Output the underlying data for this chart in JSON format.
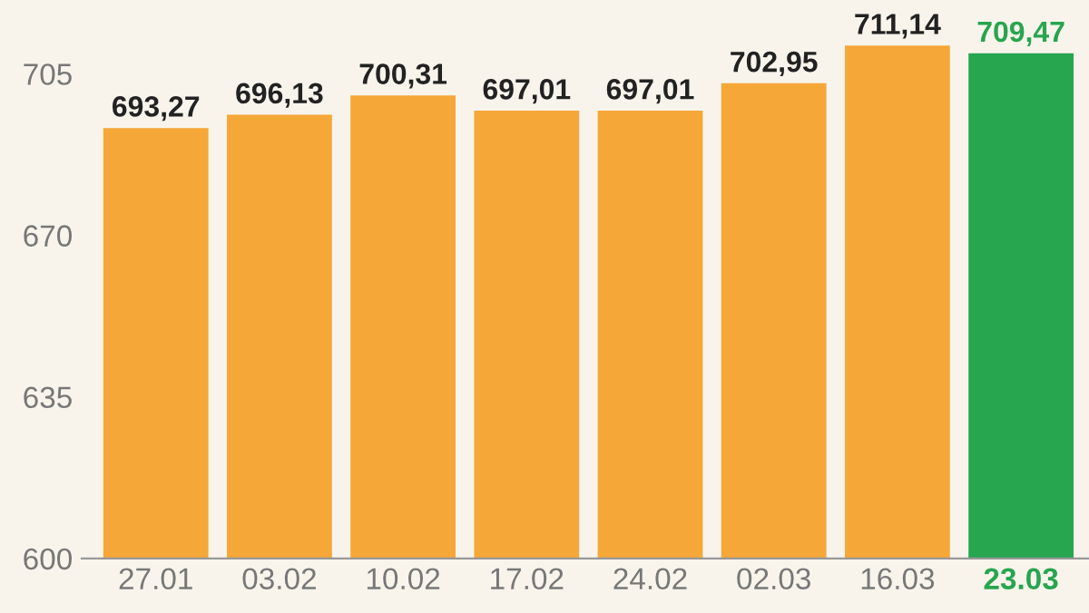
{
  "chart_data": {
    "type": "bar",
    "categories": [
      "27.01",
      "03.02",
      "10.02",
      "17.02",
      "24.02",
      "02.03",
      "16.03",
      "23.03"
    ],
    "values": [
      693.27,
      696.13,
      700.31,
      697.01,
      697.01,
      702.95,
      711.14,
      709.47
    ],
    "colors": [
      "#f5a738",
      "#f5a738",
      "#f5a738",
      "#f5a738",
      "#f5a738",
      "#f5a738",
      "#f5a738",
      "#27a54f"
    ],
    "value_labels": [
      "693,27",
      "696,13",
      "700,31",
      "697,01",
      "697,01",
      "702,95",
      "711,14",
      "709,47"
    ],
    "ylim": [
      600,
      721
    ],
    "yticks": [
      600,
      635,
      670,
      705
    ],
    "grid": false
  }
}
